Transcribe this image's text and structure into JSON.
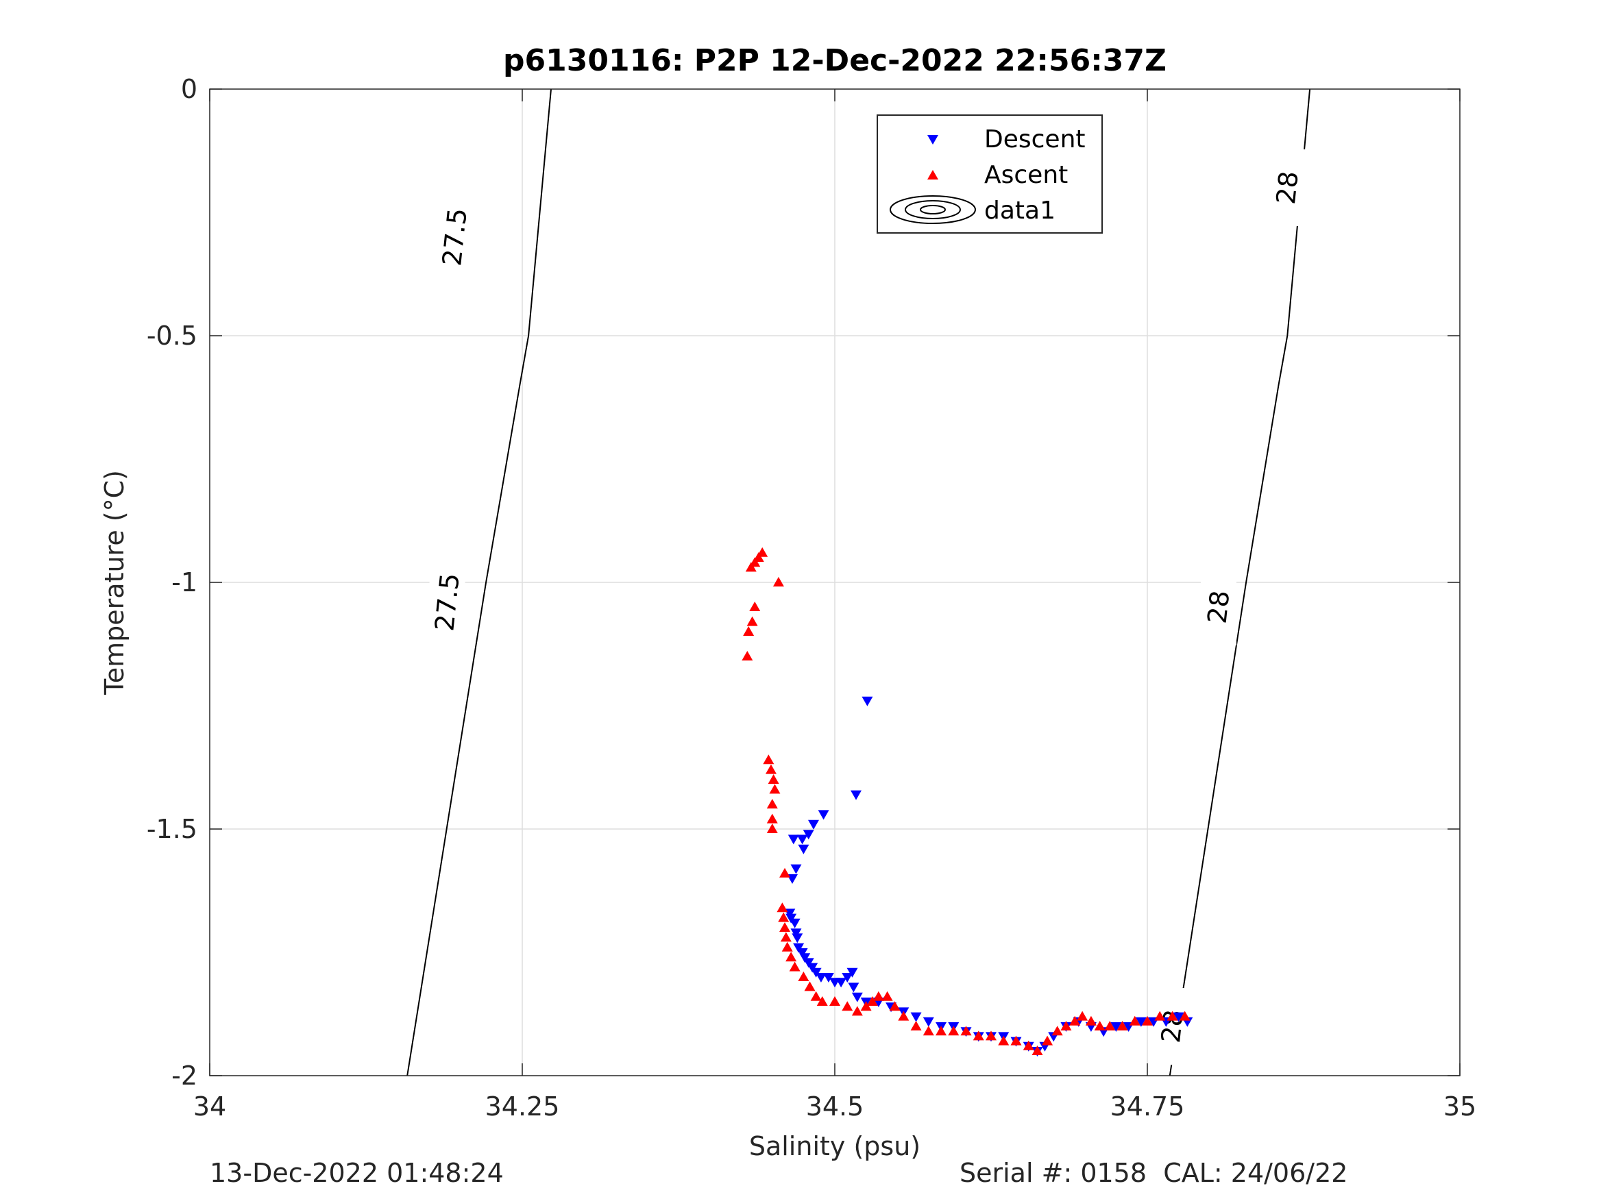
{
  "chart_data": {
    "type": "scatter",
    "title": "p6130116: P2P 12-Dec-2022 22:56:37Z",
    "xlabel": "Salinity (psu)",
    "ylabel": "Temperature (°C)",
    "xlim": [
      34,
      35
    ],
    "ylim": [
      -2,
      0
    ],
    "xticks": [
      34,
      34.25,
      34.5,
      34.75,
      35
    ],
    "xtick_labels": [
      "34",
      "34.25",
      "34.5",
      "34.75",
      "35"
    ],
    "yticks": [
      0,
      -0.5,
      -1,
      -1.5,
      -2
    ],
    "ytick_labels": [
      "0",
      "-0.5",
      "-1",
      "-1.5",
      "-2"
    ],
    "grid": true,
    "legend": {
      "placement": "top-center",
      "entries": [
        "Descent",
        "Ascent",
        "data1"
      ]
    },
    "contours": [
      {
        "label": "27.5",
        "color": "#000000",
        "points": [
          [
            34.158,
            -2
          ],
          [
            34.221,
            -1
          ],
          [
            34.248,
            -0.6
          ],
          [
            34.255,
            -0.5
          ],
          [
            34.273,
            0
          ]
        ],
        "label_positions": [
          [
            34.196,
            -0.3
          ],
          [
            34.19,
            -1.04
          ]
        ]
      },
      {
        "label": "28",
        "color": "#000000",
        "points": [
          [
            34.768,
            -2
          ],
          [
            34.829,
            -1
          ],
          [
            34.855,
            -0.6
          ],
          [
            34.862,
            -0.5
          ],
          [
            34.88,
            0
          ]
        ],
        "label_positions": [
          [
            34.862,
            -0.2
          ],
          [
            34.807,
            -1.05
          ],
          [
            34.77,
            -1.9
          ]
        ]
      }
    ],
    "series": [
      {
        "name": "Descent",
        "marker": "triangle-down",
        "color": "#0000ff",
        "points": [
          [
            34.526,
            -1.24
          ],
          [
            34.517,
            -1.43
          ],
          [
            34.491,
            -1.47
          ],
          [
            34.483,
            -1.49
          ],
          [
            34.479,
            -1.51
          ],
          [
            34.474,
            -1.52
          ],
          [
            34.467,
            -1.52
          ],
          [
            34.475,
            -1.54
          ],
          [
            34.469,
            -1.58
          ],
          [
            34.466,
            -1.6
          ],
          [
            34.464,
            -1.67
          ],
          [
            34.465,
            -1.68
          ],
          [
            34.468,
            -1.69
          ],
          [
            34.469,
            -1.71
          ],
          [
            34.47,
            -1.72
          ],
          [
            34.471,
            -1.74
          ],
          [
            34.474,
            -1.75
          ],
          [
            34.476,
            -1.76
          ],
          [
            34.479,
            -1.77
          ],
          [
            34.482,
            -1.78
          ],
          [
            34.485,
            -1.79
          ],
          [
            34.489,
            -1.8
          ],
          [
            34.495,
            -1.8
          ],
          [
            34.5,
            -1.81
          ],
          [
            34.505,
            -1.81
          ],
          [
            34.51,
            -1.8
          ],
          [
            34.514,
            -1.79
          ],
          [
            34.515,
            -1.82
          ],
          [
            34.518,
            -1.84
          ],
          [
            34.525,
            -1.85
          ],
          [
            34.535,
            -1.85
          ],
          [
            34.545,
            -1.86
          ],
          [
            34.555,
            -1.87
          ],
          [
            34.565,
            -1.88
          ],
          [
            34.575,
            -1.89
          ],
          [
            34.585,
            -1.9
          ],
          [
            34.595,
            -1.9
          ],
          [
            34.605,
            -1.91
          ],
          [
            34.615,
            -1.92
          ],
          [
            34.625,
            -1.92
          ],
          [
            34.635,
            -1.92
          ],
          [
            34.645,
            -1.93
          ],
          [
            34.655,
            -1.94
          ],
          [
            34.662,
            -1.95
          ],
          [
            34.668,
            -1.94
          ],
          [
            34.675,
            -1.92
          ],
          [
            34.685,
            -1.9
          ],
          [
            34.695,
            -1.89
          ],
          [
            34.705,
            -1.9
          ],
          [
            34.715,
            -1.91
          ],
          [
            34.725,
            -1.9
          ],
          [
            34.735,
            -1.9
          ],
          [
            34.745,
            -1.89
          ],
          [
            34.755,
            -1.89
          ],
          [
            34.765,
            -1.89
          ],
          [
            34.775,
            -1.88
          ],
          [
            34.782,
            -1.89
          ]
        ]
      },
      {
        "name": "Ascent",
        "marker": "triangle-up",
        "color": "#ff0000",
        "points": [
          [
            34.442,
            -0.94
          ],
          [
            34.439,
            -0.95
          ],
          [
            34.436,
            -0.96
          ],
          [
            34.433,
            -0.97
          ],
          [
            34.455,
            -1.0
          ],
          [
            34.436,
            -1.05
          ],
          [
            34.434,
            -1.08
          ],
          [
            34.431,
            -1.1
          ],
          [
            34.43,
            -1.15
          ],
          [
            34.447,
            -1.36
          ],
          [
            34.449,
            -1.38
          ],
          [
            34.451,
            -1.4
          ],
          [
            34.452,
            -1.42
          ],
          [
            34.45,
            -1.45
          ],
          [
            34.45,
            -1.48
          ],
          [
            34.45,
            -1.5
          ],
          [
            34.46,
            -1.59
          ],
          [
            34.458,
            -1.66
          ],
          [
            34.459,
            -1.68
          ],
          [
            34.46,
            -1.7
          ],
          [
            34.461,
            -1.72
          ],
          [
            34.462,
            -1.74
          ],
          [
            34.465,
            -1.76
          ],
          [
            34.468,
            -1.78
          ],
          [
            34.475,
            -1.8
          ],
          [
            34.48,
            -1.82
          ],
          [
            34.485,
            -1.84
          ],
          [
            34.49,
            -1.85
          ],
          [
            34.5,
            -1.85
          ],
          [
            34.51,
            -1.86
          ],
          [
            34.518,
            -1.87
          ],
          [
            34.525,
            -1.86
          ],
          [
            34.53,
            -1.85
          ],
          [
            34.535,
            -1.84
          ],
          [
            34.542,
            -1.84
          ],
          [
            34.548,
            -1.86
          ],
          [
            34.555,
            -1.88
          ],
          [
            34.565,
            -1.9
          ],
          [
            34.575,
            -1.91
          ],
          [
            34.585,
            -1.91
          ],
          [
            34.595,
            -1.91
          ],
          [
            34.605,
            -1.91
          ],
          [
            34.615,
            -1.92
          ],
          [
            34.625,
            -1.92
          ],
          [
            34.635,
            -1.93
          ],
          [
            34.645,
            -1.93
          ],
          [
            34.655,
            -1.94
          ],
          [
            34.662,
            -1.95
          ],
          [
            34.67,
            -1.93
          ],
          [
            34.678,
            -1.91
          ],
          [
            34.685,
            -1.9
          ],
          [
            34.692,
            -1.89
          ],
          [
            34.698,
            -1.88
          ],
          [
            34.705,
            -1.89
          ],
          [
            34.712,
            -1.9
          ],
          [
            34.72,
            -1.9
          ],
          [
            34.73,
            -1.9
          ],
          [
            34.74,
            -1.89
          ],
          [
            34.75,
            -1.89
          ],
          [
            34.76,
            -1.88
          ],
          [
            34.77,
            -1.88
          ],
          [
            34.78,
            -1.88
          ]
        ]
      }
    ]
  },
  "footer": {
    "timestamp": "13-Dec-2022 01:48:24",
    "serial": "Serial #: 0158  CAL: 24/06/22"
  }
}
